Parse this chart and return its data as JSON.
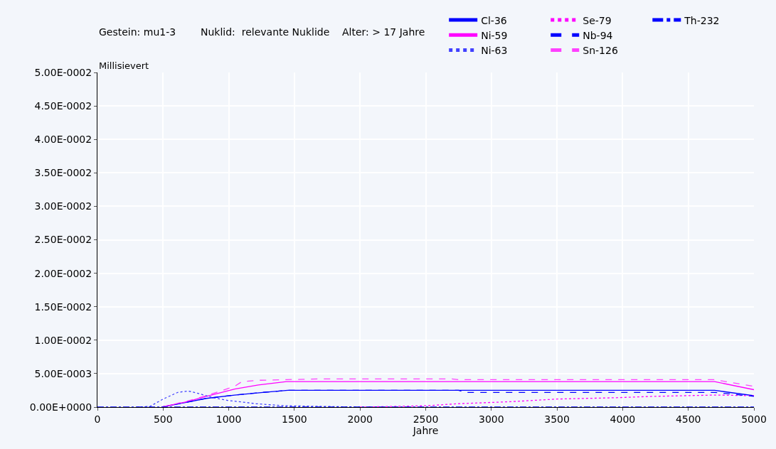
{
  "chart_data": {
    "type": "line",
    "xlabel": "Jahre",
    "ylabel": "Millisievert",
    "annotations": [
      "Gestein: mu1-3",
      "Nuklid:  relevante Nuklide",
      "Alter: > 17 Jahre"
    ],
    "xlim": [
      0,
      5000
    ],
    "xticks": [
      0,
      500,
      1000,
      1500,
      2000,
      2500,
      3000,
      3500,
      4000,
      4500,
      5000
    ],
    "ylim": [
      0,
      0.05
    ],
    "yticks": [
      {
        "value": 0,
        "label": "0.00E+0000"
      },
      {
        "value": 0.005,
        "label": "5.00E-0003"
      },
      {
        "value": 0.01,
        "label": "1.00E-0002"
      },
      {
        "value": 0.015,
        "label": "1.50E-0002"
      },
      {
        "value": 0.02,
        "label": "2.00E-0002"
      },
      {
        "value": 0.025,
        "label": "2.50E-0002"
      },
      {
        "value": 0.03,
        "label": "3.00E-0002"
      },
      {
        "value": 0.035,
        "label": "3.50E-0002"
      },
      {
        "value": 0.04,
        "label": "4.00E-0002"
      },
      {
        "value": 0.045,
        "label": "4.50E-0002"
      },
      {
        "value": 0.05,
        "label": "5.00E-0002"
      }
    ],
    "grid": true,
    "legend": "top right",
    "marker": "none",
    "series": [
      {
        "name": "Cl-36",
        "color": "#0000ff",
        "line_style": "solid",
        "x": [
          490,
          830,
          1045,
          1260,
          1450,
          4700,
          5000
        ],
        "values": [
          0,
          0.0013,
          0.0018,
          0.0022,
          0.0025,
          0.0025,
          0.0017
        ]
      },
      {
        "name": "Ni-59",
        "color": "#ff00ff",
        "line_style": "solid",
        "x": [
          490,
          683,
          830,
          1045,
          1225,
          1440,
          4700,
          5000
        ],
        "values": [
          0,
          0.0008,
          0.0016,
          0.0027,
          0.0033,
          0.0038,
          0.0038,
          0.0026
        ]
      },
      {
        "name": "Ni-63",
        "color": "#4040ff",
        "line_style": "dotted",
        "x": [
          300,
          400,
          500,
          612,
          693,
          775,
          883,
          990,
          1127,
          1208,
          1425,
          2000
        ],
        "values": [
          0,
          0.0001,
          0.0012,
          0.0022,
          0.0024,
          0.002,
          0.0014,
          0.001,
          0.0007,
          0.0005,
          0.0002,
          0
        ]
      },
      {
        "name": "Se-79",
        "color": "#ff00ff",
        "line_style": "dotted",
        "x": [
          2000,
          2510,
          2740,
          3140,
          3500,
          3950,
          4225,
          4710,
          5000
        ],
        "values": [
          0,
          0.0002,
          0.0005,
          0.0008,
          0.0012,
          0.0014,
          0.0016,
          0.0018,
          0.0017
        ]
      },
      {
        "name": "Nb-94",
        "color": "#0000ff",
        "line_style": "dashed",
        "x": [
          490,
          830,
          1045,
          1260,
          1450,
          2750,
          2800,
          4700,
          5000
        ],
        "values": [
          0,
          0.0013,
          0.0018,
          0.0022,
          0.0025,
          0.0025,
          0.0022,
          0.0022,
          0.0016
        ]
      },
      {
        "name": "Sn-126",
        "color": "#ff40ff",
        "line_style": "dashed",
        "x": [
          490,
          683,
          830,
          1045,
          1100,
          1225,
          1440,
          1680,
          2700,
          2750,
          4700,
          5000
        ],
        "values": [
          0,
          0.0009,
          0.0017,
          0.0031,
          0.0038,
          0.004,
          0.0041,
          0.0042,
          0.0042,
          0.0041,
          0.0041,
          0.0031
        ]
      },
      {
        "name": "Th-232",
        "color": "#0000ff",
        "line_style": "dashdot",
        "x": [
          0,
          5000
        ],
        "values": [
          0,
          0
        ]
      }
    ]
  }
}
